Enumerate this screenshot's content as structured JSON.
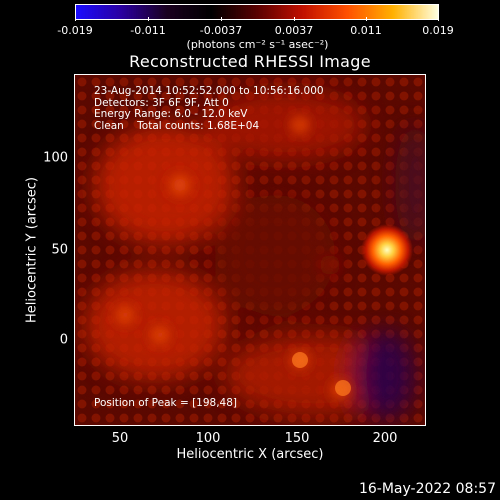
{
  "colorbar": {
    "ticks": [
      "-0.019",
      "-0.011",
      "-0.0037",
      "0.0037",
      "0.011",
      "0.019"
    ],
    "units": "(photons cm⁻² s⁻¹ asec⁻²)",
    "colors": [
      "#1a0cff",
      "#2a00a0",
      "#1a0020",
      "#000000",
      "#5a0000",
      "#c01000",
      "#ff5000",
      "#ffb000",
      "#ffffe0"
    ]
  },
  "title": "Reconstructed RHESSI Image",
  "info": {
    "time": "23-Aug-2014 10:52:52.000 to 10:56:16.000",
    "detectors": "Detectors: 3F 6F 9F, Att 0",
    "energy": "Energy Range: 6.0 - 12.0 keV",
    "clean": "Clean    Total counts: 1.68E+04"
  },
  "peak": "Position of Peak = [198,48]",
  "axes": {
    "xlabel": "Heliocentric X (arcsec)",
    "ylabel": "Heliocentric Y (arcsec)",
    "xticks": [
      "50",
      "100",
      "150",
      "200"
    ],
    "yticks": [
      "100",
      "50",
      "0"
    ]
  },
  "date": "16-May-2022 08:57"
}
